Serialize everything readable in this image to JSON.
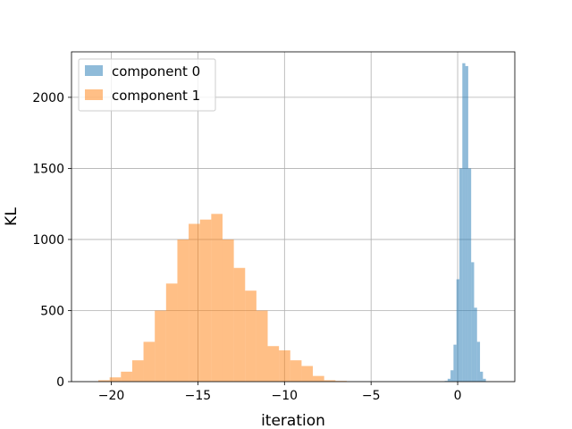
{
  "chart_data": {
    "type": "histogram",
    "title": "",
    "xlabel": "iteration",
    "ylabel": "KL",
    "xlim": [
      -22.3,
      3.3
    ],
    "ylim": [
      0,
      2320
    ],
    "xticks": [
      -20,
      -15,
      -10,
      -5,
      0
    ],
    "xtick_labels": [
      "−20",
      "−15",
      "−10",
      "−5",
      "0"
    ],
    "yticks": [
      0,
      500,
      1000,
      1500,
      2000
    ],
    "ytick_labels": [
      "0",
      "500",
      "1000",
      "1500",
      "2000"
    ],
    "grid": true,
    "legend_position": "upper-left",
    "series": [
      {
        "name": "component 0",
        "color": "#1f77b4",
        "alpha": 0.5,
        "bin_start": -0.75,
        "bin_width": 0.17,
        "counts": [
          5,
          20,
          80,
          260,
          720,
          1500,
          2240,
          2220,
          1500,
          840,
          520,
          280,
          70,
          20
        ]
      },
      {
        "name": "component 1",
        "color": "#ff7f0e",
        "alpha": 0.5,
        "bin_start": -20.75,
        "bin_width": 0.652,
        "counts": [
          10,
          30,
          70,
          150,
          280,
          500,
          690,
          1000,
          1110,
          1140,
          1180,
          1000,
          800,
          640,
          500,
          250,
          220,
          150,
          110,
          40,
          10,
          5,
          0,
          0,
          0,
          0,
          0,
          0,
          0,
          0
        ]
      }
    ]
  }
}
